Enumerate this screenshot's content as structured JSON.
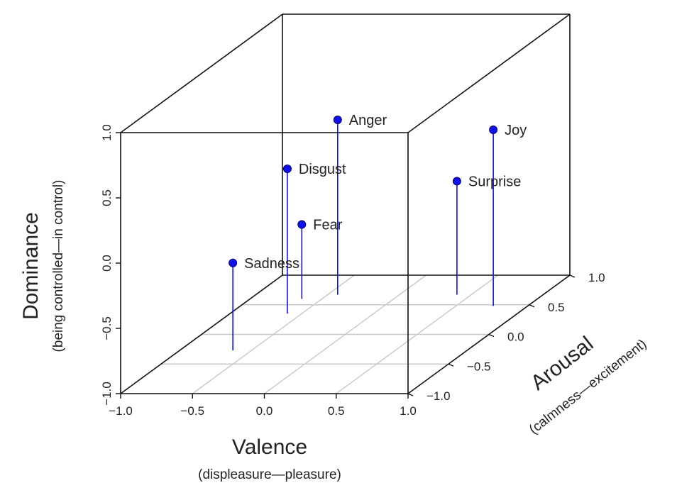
{
  "chart_data": {
    "type": "scatter",
    "projection": "3d",
    "point_color": "#1010ee",
    "grid": true,
    "x_axis": {
      "label": "Valence",
      "sublabel": "(displeasure—pleasure)",
      "range": [
        -1.0,
        1.0
      ],
      "ticks": [
        {
          "value": -1.0,
          "label": "−1.0"
        },
        {
          "value": -0.5,
          "label": "−0.5"
        },
        {
          "value": 0.0,
          "label": "0.0"
        },
        {
          "value": 0.5,
          "label": "0.5"
        },
        {
          "value": 1.0,
          "label": "1.0"
        }
      ]
    },
    "y_axis": {
      "label": "Arousal",
      "sublabel": "(calmness—excitement)",
      "range": [
        -1.0,
        1.0
      ],
      "ticks": [
        {
          "value": -1.0,
          "label": "−1.0"
        },
        {
          "value": -0.5,
          "label": "−0.5"
        },
        {
          "value": 0.0,
          "label": "0.0"
        },
        {
          "value": 0.5,
          "label": "0.5"
        },
        {
          "value": 1.0,
          "label": "1.0"
        }
      ]
    },
    "z_axis": {
      "label": "Dominance",
      "sublabel": "(being controlled—in control)",
      "range": [
        -1.0,
        1.0
      ],
      "ticks": [
        {
          "value": -1.0,
          "label": "−1.0"
        },
        {
          "value": -0.5,
          "label": "−0.5"
        },
        {
          "value": 0.0,
          "label": "0.0"
        },
        {
          "value": 0.5,
          "label": "0.5"
        },
        {
          "value": 1.0,
          "label": "1.0"
        }
      ]
    },
    "points": [
      {
        "label": "Anger",
        "valence": -0.43,
        "arousal": 0.67,
        "dominance": 0.34
      },
      {
        "label": "Disgust",
        "valence": -0.6,
        "arousal": 0.35,
        "dominance": 0.11
      },
      {
        "label": "Fear",
        "valence": -0.64,
        "arousal": 0.6,
        "dominance": -0.43
      },
      {
        "label": "Sadness",
        "valence": -0.63,
        "arousal": -0.27,
        "dominance": -0.33
      },
      {
        "label": "Surprise",
        "valence": 0.4,
        "arousal": 0.67,
        "dominance": -0.13
      },
      {
        "label": "Joy",
        "valence": 0.76,
        "arousal": 0.48,
        "dominance": 0.35
      }
    ]
  }
}
